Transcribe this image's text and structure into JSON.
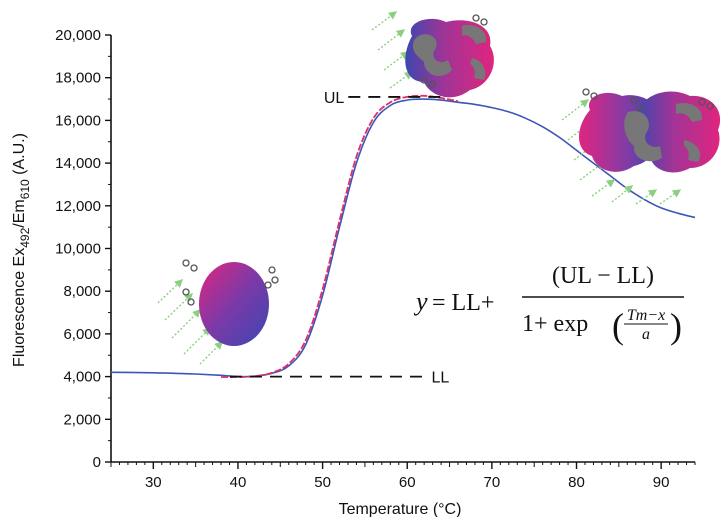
{
  "chart_data": {
    "type": "line",
    "title": "",
    "xlabel_main": "Temperature (",
    "xlabel_unit": "°C",
    "xlabel_close": ")",
    "ylabel_main": "Fluorescence Ex",
    "ylabel_sub1": "492",
    "ylabel_mid": "/Em",
    "ylabel_sub2": "610",
    "ylabel_tail": " (A.U.)",
    "xlim": [
      25,
      94
    ],
    "ylim": [
      0,
      20000
    ],
    "x_ticks": [
      30,
      40,
      50,
      60,
      70,
      80,
      90
    ],
    "y_ticks": [
      0,
      2000,
      4000,
      6000,
      8000,
      10000,
      12000,
      14000,
      16000,
      18000,
      20000
    ],
    "y_tick_labels": [
      "0",
      "2,000",
      "4,000",
      "6,000",
      "8,000",
      "10,000",
      "12,000",
      "14,000",
      "16,000",
      "18,000",
      "20,000"
    ],
    "series": [
      {
        "color": "#3b56b8",
        "x": [
          25,
          30,
          35,
          38,
          40,
          42,
          44,
          46,
          48,
          50,
          52,
          54,
          56,
          58,
          60,
          62,
          64,
          66,
          68,
          70,
          72,
          74,
          76,
          78,
          80,
          82,
          84,
          86,
          88,
          90,
          92,
          94
        ],
        "y": [
          4200,
          4180,
          4120,
          4060,
          4000,
          4020,
          4150,
          4500,
          5500,
          7800,
          11000,
          14000,
          15900,
          16700,
          16950,
          17000,
          16950,
          16850,
          16750,
          16600,
          16400,
          16100,
          15700,
          15200,
          14600,
          14000,
          13400,
          12800,
          12300,
          11900,
          11650,
          11450
        ]
      },
      {
        "color": "#e0306a",
        "dashed": true,
        "x": [
          38,
          40,
          42,
          44,
          46,
          48,
          50,
          52,
          54,
          56,
          58,
          60,
          62,
          64,
          66
        ],
        "y": [
          3980,
          3980,
          4020,
          4180,
          4600,
          5700,
          8100,
          11300,
          14300,
          16100,
          16850,
          17100,
          17150,
          17050,
          16900
        ]
      }
    ],
    "annotations": {
      "ul_label": "UL",
      "ul_value": 17100,
      "ul_line_x": [
        58,
        64
      ],
      "ll_label": "LL",
      "ll_value": 4000,
      "ll_line_x": [
        40,
        52
      ],
      "equation": {
        "lhs": "y",
        "eq": " = LL+",
        "numerator": "(UL − LL)",
        "denom_pre": "1+ exp",
        "inner_num": "Tm−x",
        "inner_den": "a"
      }
    },
    "colors": {
      "series_blue": "#3b56b8",
      "series_red": "#e0306a",
      "protein_pink": "#e0257e",
      "protein_blue": "#3d47b0",
      "protein_gray": "#777777",
      "arrow_green": "#8ccf7e"
    }
  }
}
